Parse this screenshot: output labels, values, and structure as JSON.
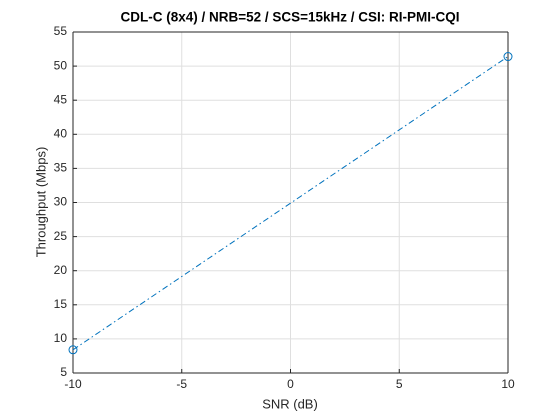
{
  "chart_data": {
    "type": "line",
    "title": "CDL-C (8x4) / NRB=52 / SCS=15kHz / CSI: RI-PMI-CQI",
    "x_label": "SNR (dB)",
    "y_label": "Throughput (Mbps)",
    "x": [
      -10,
      10
    ],
    "series": [
      {
        "color": "#0072bd",
        "values": [
          8.4,
          51.4
        ],
        "line_style": "-.",
        "marker": "o"
      }
    ],
    "xlim": [
      -10,
      10
    ],
    "xticks": [
      -10,
      -5,
      0,
      5,
      10
    ],
    "ylim": [
      5,
      55
    ],
    "yticks": [
      5,
      10,
      15,
      20,
      25,
      30,
      35,
      40,
      45,
      50,
      55
    ],
    "grid": true,
    "box": true
  }
}
